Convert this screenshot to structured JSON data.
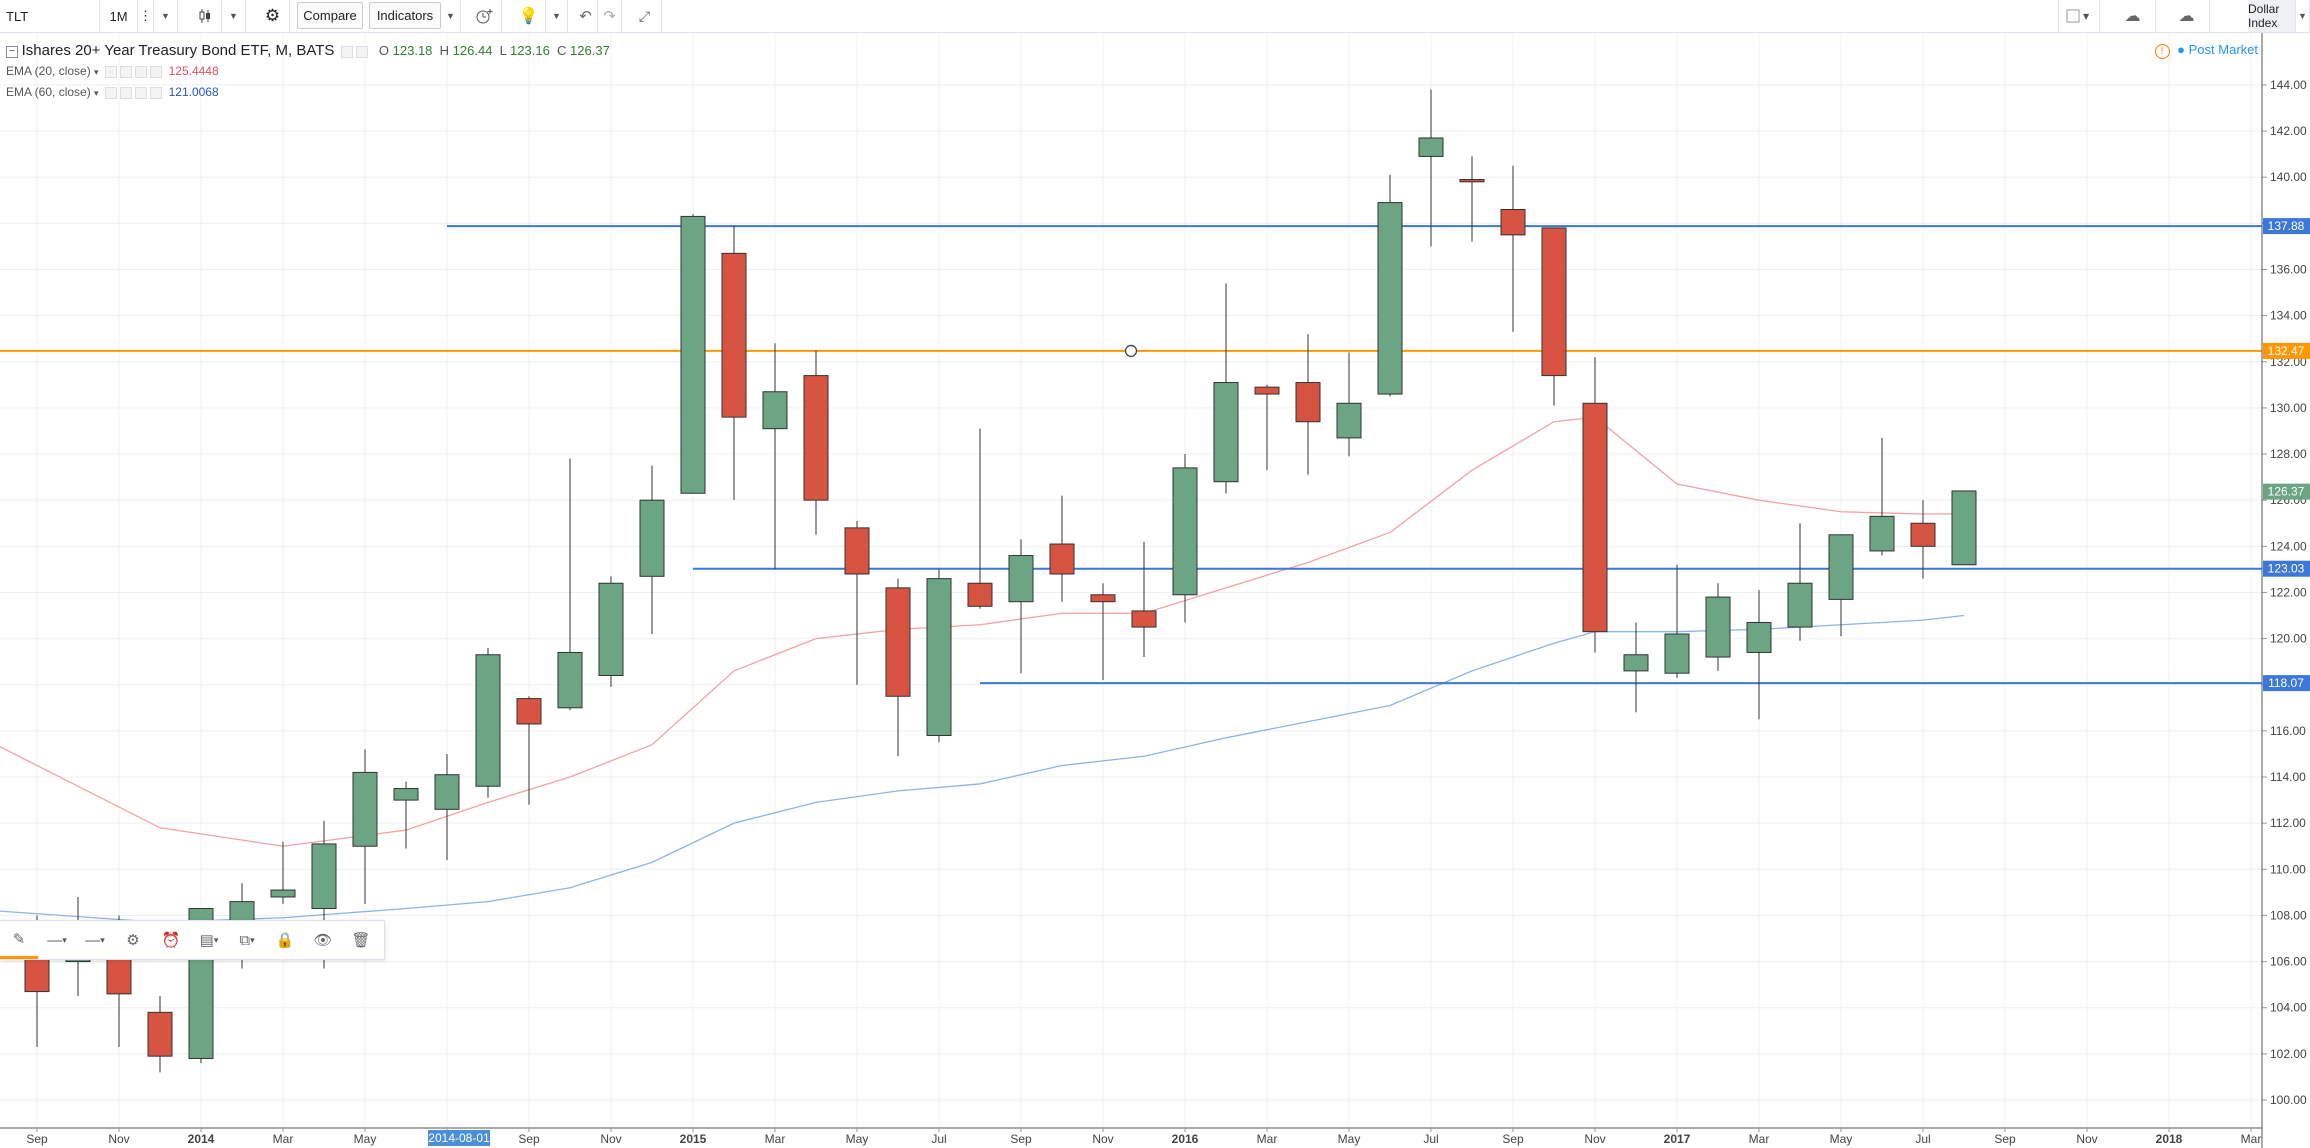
{
  "toolbar": {
    "symbol": "TLT",
    "interval": "1M",
    "compare_label": "Compare",
    "indicators_label": "Indicators",
    "dollar_index_label": "Dollar Index"
  },
  "legend": {
    "title": "Ishares 20+ Year Treasury Bond ETF, M, BATS",
    "open_label": "O",
    "open": "123.18",
    "high_label": "H",
    "high": "126.44",
    "low_label": "L",
    "low": "123.16",
    "close_label": "C",
    "close": "126.37",
    "ema20_label": "EMA (20, close)",
    "ema20_value": "125.4448",
    "ema60_label": "EMA (60, close)",
    "ema60_value": "121.0068"
  },
  "post_market_label": "Post Market",
  "colors": {
    "up": "#6ba583",
    "down": "#d75442",
    "ema20": "#f4a1a6",
    "ema60": "#8fb3e8",
    "hline": "#3c78d8",
    "orange": "#ff9800",
    "grid": "#eef0f3"
  },
  "chart_data": {
    "type": "candlestick",
    "y_range": [
      99,
      145
    ],
    "y_ticks": [
      "100.00",
      "102.00",
      "104.00",
      "106.00",
      "108.00",
      "110.00",
      "112.00",
      "114.00",
      "116.00",
      "118.00",
      "120.00",
      "122.00",
      "124.00",
      "126.00",
      "128.00",
      "130.00",
      "132.00",
      "134.00",
      "136.00",
      "138.00",
      "140.00",
      "142.00",
      "144.00"
    ],
    "x_labels": [
      {
        "label": "Sep",
        "i": 0
      },
      {
        "label": "Nov",
        "i": 2
      },
      {
        "label": "2014",
        "i": 4
      },
      {
        "label": "Mar",
        "i": 6
      },
      {
        "label": "May",
        "i": 8
      },
      {
        "label": "Jul",
        "i": 10
      },
      {
        "label": "2014-08-01",
        "i": 11
      },
      {
        "label": "Sep",
        "i": 12
      },
      {
        "label": "Nov",
        "i": 14
      },
      {
        "label": "2015",
        "i": 16
      },
      {
        "label": "Mar",
        "i": 18
      },
      {
        "label": "May",
        "i": 20
      },
      {
        "label": "Jul",
        "i": 22
      },
      {
        "label": "Sep",
        "i": 24
      },
      {
        "label": "Nov",
        "i": 26
      },
      {
        "label": "2016",
        "i": 28
      },
      {
        "label": "Mar",
        "i": 30
      },
      {
        "label": "May",
        "i": 32
      },
      {
        "label": "Jul",
        "i": 34
      },
      {
        "label": "Sep",
        "i": 36
      },
      {
        "label": "Nov",
        "i": 38
      },
      {
        "label": "2017",
        "i": 40
      },
      {
        "label": "Mar",
        "i": 42
      },
      {
        "label": "May",
        "i": 44
      },
      {
        "label": "Jul",
        "i": 46
      },
      {
        "label": "Sep",
        "i": 48
      },
      {
        "label": "Nov",
        "i": 50
      },
      {
        "label": "2018",
        "i": 52
      },
      {
        "label": "Mar",
        "i": 54
      }
    ],
    "highlight_x_label": "2014-08-01",
    "candles": [
      {
        "o": 106.1,
        "h": 108.0,
        "l": 102.3,
        "c": 104.7
      },
      {
        "o": 106.0,
        "h": 108.8,
        "l": 104.5,
        "c": 106.1
      },
      {
        "o": 106.1,
        "h": 108.0,
        "l": 102.3,
        "c": 104.6
      },
      {
        "o": 103.8,
        "h": 104.5,
        "l": 101.2,
        "c": 101.9
      },
      {
        "o": 101.8,
        "h": 108.3,
        "l": 101.6,
        "c": 108.3
      },
      {
        "o": 107.7,
        "h": 109.4,
        "l": 105.7,
        "c": 108.6
      },
      {
        "o": 108.8,
        "h": 111.2,
        "l": 108.5,
        "c": 109.1
      },
      {
        "o": 108.3,
        "h": 112.1,
        "l": 105.7,
        "c": 111.1
      },
      {
        "o": 111.0,
        "h": 115.2,
        "l": 108.5,
        "c": 114.2
      },
      {
        "o": 113.0,
        "h": 113.8,
        "l": 110.9,
        "c": 113.5
      },
      {
        "o": 112.6,
        "h": 115.0,
        "l": 110.4,
        "c": 114.1
      },
      {
        "o": 113.6,
        "h": 119.6,
        "l": 113.1,
        "c": 119.3
      },
      {
        "o": 117.4,
        "h": 117.5,
        "l": 112.8,
        "c": 116.3
      },
      {
        "o": 117.0,
        "h": 127.8,
        "l": 116.9,
        "c": 119.4
      },
      {
        "o": 118.4,
        "h": 122.7,
        "l": 117.9,
        "c": 122.4
      },
      {
        "o": 122.7,
        "h": 127.5,
        "l": 120.2,
        "c": 126.0
      },
      {
        "o": 126.3,
        "h": 138.4,
        "l": 126.3,
        "c": 138.3
      },
      {
        "o": 136.7,
        "h": 137.9,
        "l": 126.0,
        "c": 129.6
      },
      {
        "o": 129.1,
        "h": 132.8,
        "l": 123.0,
        "c": 130.7
      },
      {
        "o": 131.4,
        "h": 132.5,
        "l": 124.5,
        "c": 126.0
      },
      {
        "o": 124.8,
        "h": 125.1,
        "l": 118.0,
        "c": 122.8
      },
      {
        "o": 122.2,
        "h": 122.6,
        "l": 114.9,
        "c": 117.5
      },
      {
        "o": 115.8,
        "h": 123.0,
        "l": 115.5,
        "c": 122.6
      },
      {
        "o": 122.4,
        "h": 129.1,
        "l": 121.3,
        "c": 121.4
      },
      {
        "o": 121.6,
        "h": 124.3,
        "l": 118.5,
        "c": 123.6
      },
      {
        "o": 124.1,
        "h": 126.2,
        "l": 121.6,
        "c": 122.8
      },
      {
        "o": 121.9,
        "h": 122.4,
        "l": 118.2,
        "c": 121.6
      },
      {
        "o": 121.2,
        "h": 124.2,
        "l": 119.2,
        "c": 120.5
      },
      {
        "o": 121.9,
        "h": 128.0,
        "l": 120.7,
        "c": 127.4
      },
      {
        "o": 126.8,
        "h": 135.4,
        "l": 126.3,
        "c": 131.1
      },
      {
        "o": 130.9,
        "h": 131.0,
        "l": 127.3,
        "c": 130.6
      },
      {
        "o": 131.1,
        "h": 133.2,
        "l": 127.1,
        "c": 129.4
      },
      {
        "o": 128.7,
        "h": 132.4,
        "l": 127.9,
        "c": 130.2
      },
      {
        "o": 130.6,
        "h": 140.1,
        "l": 130.5,
        "c": 138.9
      },
      {
        "o": 140.9,
        "h": 143.8,
        "l": 137.0,
        "c": 141.7
      },
      {
        "o": 139.9,
        "h": 140.9,
        "l": 137.2,
        "c": 139.8
      },
      {
        "o": 138.6,
        "h": 140.5,
        "l": 133.3,
        "c": 137.5
      },
      {
        "o": 137.8,
        "h": 137.8,
        "l": 130.1,
        "c": 131.4
      },
      {
        "o": 130.2,
        "h": 132.2,
        "l": 119.4,
        "c": 120.3
      },
      {
        "o": 118.6,
        "h": 120.7,
        "l": 116.8,
        "c": 119.3
      },
      {
        "o": 118.5,
        "h": 123.2,
        "l": 118.3,
        "c": 120.2
      },
      {
        "o": 119.2,
        "h": 122.4,
        "l": 118.6,
        "c": 121.8
      },
      {
        "o": 119.4,
        "h": 122.1,
        "l": 116.5,
        "c": 120.7
      },
      {
        "o": 120.5,
        "h": 125.0,
        "l": 119.9,
        "c": 122.4
      },
      {
        "o": 121.7,
        "h": 124.5,
        "l": 120.1,
        "c": 124.5
      },
      {
        "o": 123.8,
        "h": 128.7,
        "l": 123.6,
        "c": 125.3
      },
      {
        "o": 125.0,
        "h": 126.0,
        "l": 122.6,
        "c": 124.0
      },
      {
        "o": 123.2,
        "h": 126.4,
        "l": 123.2,
        "c": 126.4
      }
    ],
    "ema20": [
      [
        -1,
        115.4
      ],
      [
        3,
        111.8
      ],
      [
        6,
        111.0
      ],
      [
        9,
        111.7
      ],
      [
        11,
        112.9
      ],
      [
        13,
        114.0
      ],
      [
        15,
        115.4
      ],
      [
        17,
        118.6
      ],
      [
        19,
        120.0
      ],
      [
        21,
        120.4
      ],
      [
        23,
        120.6
      ],
      [
        25,
        121.1
      ],
      [
        27,
        121.1
      ],
      [
        29,
        122.2
      ],
      [
        31,
        123.3
      ],
      [
        33,
        124.6
      ],
      [
        35,
        127.3
      ],
      [
        37,
        129.4
      ],
      [
        38,
        129.6
      ],
      [
        40,
        126.7
      ],
      [
        42,
        126.0
      ],
      [
        44,
        125.5
      ],
      [
        46,
        125.4
      ],
      [
        47,
        125.4
      ]
    ],
    "ema60": [
      [
        -1,
        108.2
      ],
      [
        3,
        107.7
      ],
      [
        6,
        107.9
      ],
      [
        9,
        108.3
      ],
      [
        11,
        108.6
      ],
      [
        13,
        109.2
      ],
      [
        15,
        110.3
      ],
      [
        17,
        112.0
      ],
      [
        19,
        112.9
      ],
      [
        21,
        113.4
      ],
      [
        23,
        113.7
      ],
      [
        25,
        114.5
      ],
      [
        27,
        114.9
      ],
      [
        29,
        115.7
      ],
      [
        31,
        116.4
      ],
      [
        33,
        117.1
      ],
      [
        35,
        118.6
      ],
      [
        37,
        119.8
      ],
      [
        38,
        120.3
      ],
      [
        40,
        120.3
      ],
      [
        42,
        120.4
      ],
      [
        44,
        120.6
      ],
      [
        46,
        120.8
      ],
      [
        47,
        121.0
      ]
    ],
    "hlines": [
      {
        "value": 137.88,
        "from_i": 10,
        "label": "137.88",
        "color": "#3c78d8"
      },
      {
        "value": 132.47,
        "from_i": null,
        "label": "132.47",
        "color": "#ff9800"
      },
      {
        "value": 123.03,
        "from_i": 16,
        "label": "123.03",
        "color": "#3c78d8"
      },
      {
        "value": 118.07,
        "from_i": 23,
        "label": "118.07",
        "color": "#3c78d8"
      }
    ],
    "last_price_label": "126.37",
    "last_price": 126.37
  }
}
